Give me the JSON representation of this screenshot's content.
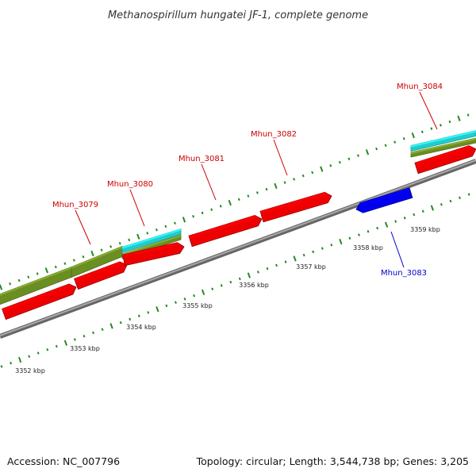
{
  "title": "Methanospirillum hungatei JF-1, complete genome",
  "footer": {
    "accession": "Accession: NC_007796",
    "summary": "Topology: circular; Length: 3,544,738 bp; Genes: 3,205"
  },
  "colors": {
    "forward_cds": "#ee0000",
    "reverse_cds": "#0000ee",
    "forward_label": "#cc0000",
    "reverse_label": "#0000cc",
    "olive_feature": "#6b8e23",
    "cyan_feature": "#22cccc",
    "backbone": "#888888",
    "tick": "#228b22"
  },
  "genes": [
    {
      "name": "Mhun_3079",
      "strand": "+"
    },
    {
      "name": "Mhun_3080",
      "strand": "+"
    },
    {
      "name": "Mhun_3081",
      "strand": "+"
    },
    {
      "name": "Mhun_3082",
      "strand": "+"
    },
    {
      "name": "Mhun_3083",
      "strand": "-"
    },
    {
      "name": "Mhun_3084",
      "strand": "+"
    }
  ],
  "scale_labels": [
    "3352 kbp",
    "3353 kbp",
    "3354 kbp",
    "3355 kbp",
    "3356 kbp",
    "3357 kbp",
    "3358 kbp",
    "3359 kbp"
  ]
}
